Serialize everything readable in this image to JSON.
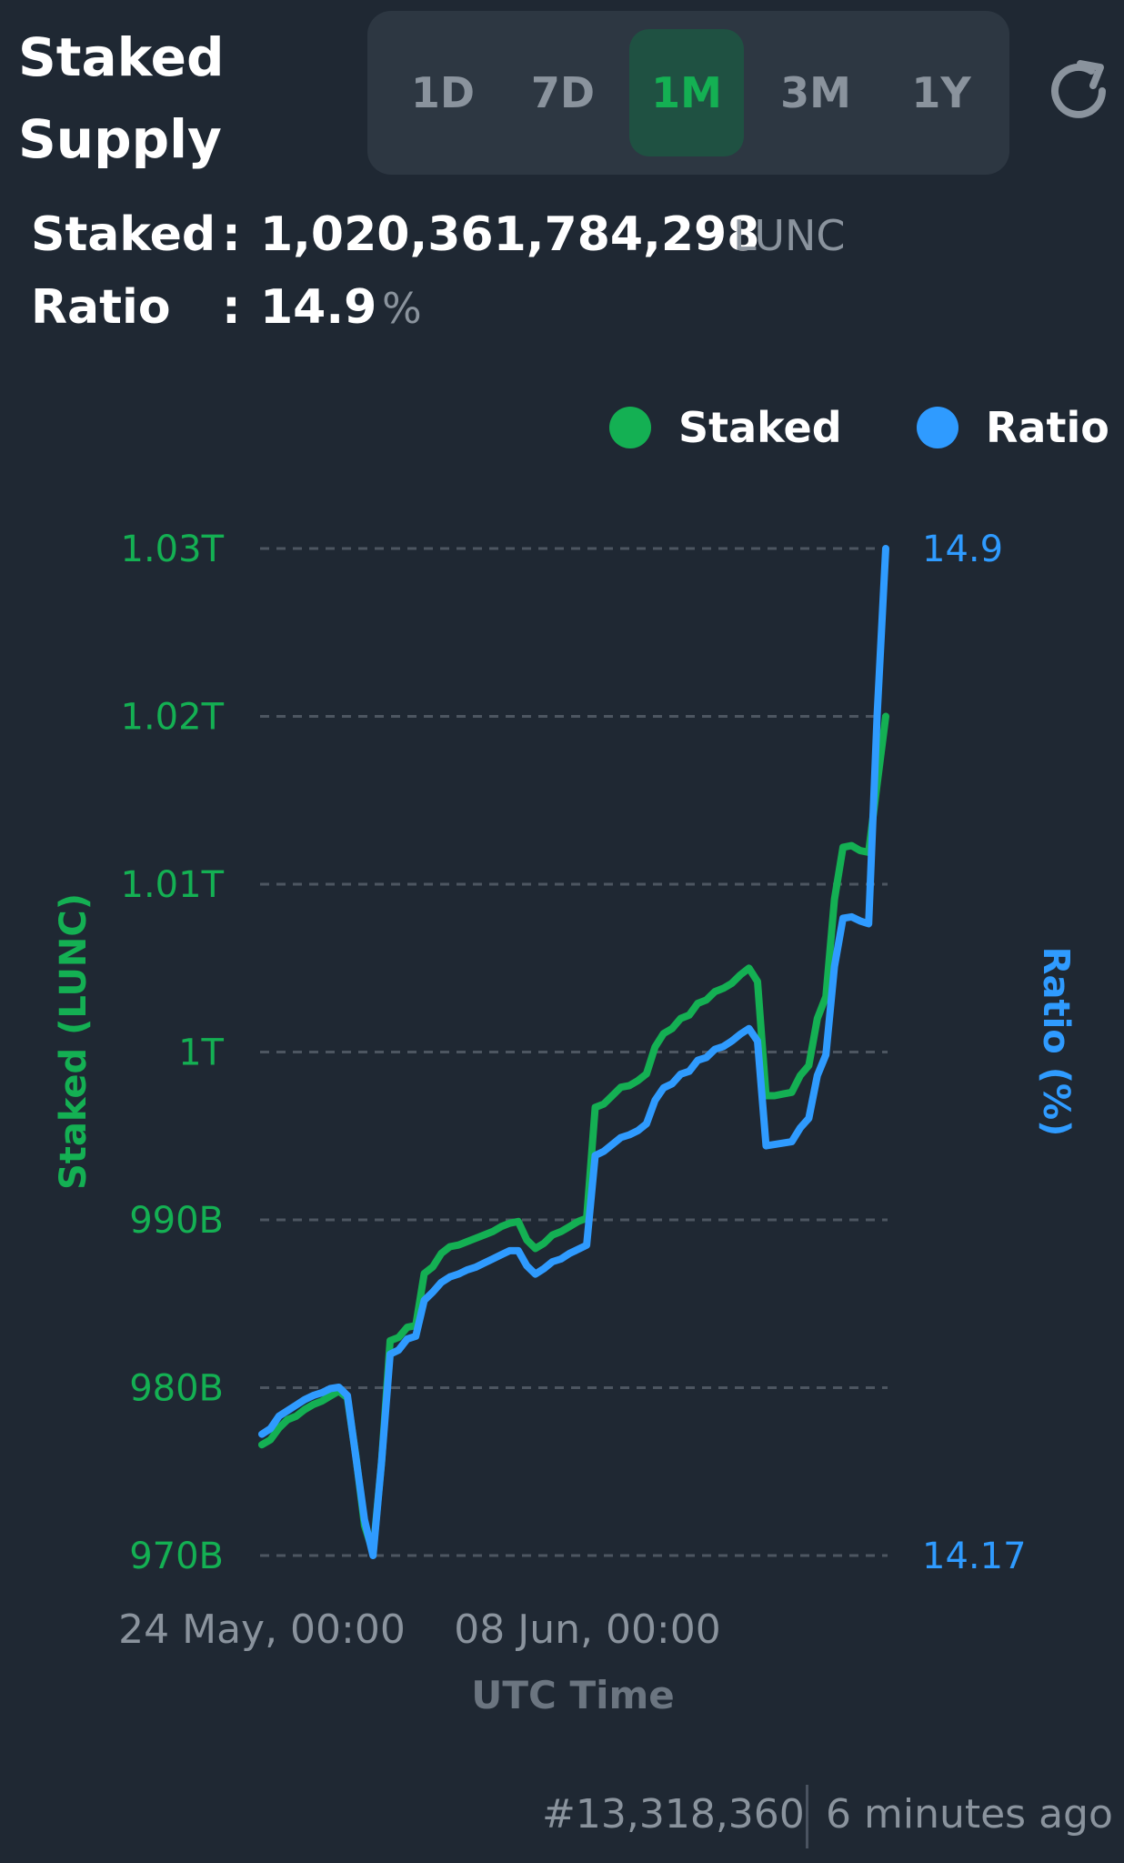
{
  "header": {
    "title_line1": "Staked",
    "title_line2": "Supply"
  },
  "range_tabs": [
    {
      "label": "1D",
      "active": false
    },
    {
      "label": "7D",
      "active": false
    },
    {
      "label": "1M",
      "active": true
    },
    {
      "label": "3M",
      "active": false
    },
    {
      "label": "1Y",
      "active": false
    }
  ],
  "refresh_icon": "refresh-icon",
  "stats": {
    "staked_label": "Staked",
    "staked_value": "1,020,361,784,298",
    "staked_unit": "LUNC",
    "ratio_label": "Ratio",
    "ratio_value": "14.9",
    "ratio_unit": "%",
    "separator": ":"
  },
  "legend": [
    {
      "name": "Staked",
      "color": "#14b053"
    },
    {
      "name": "Ratio",
      "color": "#2f9bff"
    }
  ],
  "chart_data": {
    "type": "line",
    "xlabel": "UTC Time",
    "x_tick_labels": [
      "24 May, 00:00",
      "08 Jun, 00:00"
    ],
    "y_left": {
      "label": "Staked (LUNC)",
      "tick_labels": [
        "1.03T",
        "1.02T",
        "1.01T",
        "1T",
        "990B",
        "980B",
        "970B"
      ],
      "tick_values": [
        1030,
        1020,
        1010,
        1000,
        990,
        980,
        970
      ],
      "range": [
        970,
        1030
      ],
      "unit": "B"
    },
    "y_right": {
      "label": "Ratio (%)",
      "tick_labels": [
        "14.9",
        "14.17"
      ],
      "range": [
        14.17,
        14.9
      ]
    },
    "grid": true,
    "legend_position": "top-right",
    "x_points": 74,
    "series": [
      {
        "name": "Staked",
        "axis": "left",
        "color": "#14b053",
        "values": [
          976.6,
          976.9,
          977.6,
          978.1,
          978.3,
          978.7,
          979.0,
          979.2,
          979.5,
          979.8,
          979.4,
          975.9,
          971.8,
          970.2,
          975.6,
          982.8,
          983.0,
          983.6,
          983.7,
          986.8,
          987.2,
          988.0,
          988.4,
          988.5,
          988.7,
          988.9,
          989.1,
          989.3,
          989.6,
          989.8,
          989.9,
          988.8,
          988.3,
          988.6,
          989.1,
          989.3,
          989.6,
          989.9,
          990.1,
          996.7,
          996.9,
          997.4,
          997.9,
          998.0,
          998.3,
          998.7,
          1000.3,
          1001.1,
          1001.4,
          1002.0,
          1002.2,
          1002.9,
          1003.1,
          1003.6,
          1003.8,
          1004.1,
          1004.6,
          1005.0,
          1004.2,
          997.4,
          997.4,
          997.5,
          997.6,
          998.6,
          999.2,
          1002.0,
          1003.3,
          1009.1,
          1012.2,
          1012.3,
          1012.0,
          1011.9,
          1016.0,
          1020.0
        ]
      },
      {
        "name": "Ratio",
        "axis": "right",
        "color": "#2f9bff",
        "values": [
          14.258,
          14.262,
          14.271,
          14.275,
          14.279,
          14.283,
          14.286,
          14.288,
          14.291,
          14.292,
          14.286,
          14.241,
          14.196,
          14.17,
          14.238,
          14.316,
          14.319,
          14.327,
          14.329,
          14.355,
          14.361,
          14.368,
          14.372,
          14.374,
          14.377,
          14.379,
          14.382,
          14.385,
          14.388,
          14.391,
          14.391,
          14.38,
          14.374,
          14.378,
          14.383,
          14.385,
          14.389,
          14.392,
          14.395,
          14.46,
          14.463,
          14.468,
          14.473,
          14.475,
          14.478,
          14.483,
          14.5,
          14.509,
          14.512,
          14.519,
          14.521,
          14.529,
          14.531,
          14.537,
          14.539,
          14.543,
          14.548,
          14.552,
          14.543,
          14.467,
          14.468,
          14.469,
          14.47,
          14.48,
          14.487,
          14.518,
          14.533,
          14.597,
          14.632,
          14.633,
          14.63,
          14.628,
          14.78,
          14.9
        ]
      }
    ]
  },
  "footer": {
    "block": "#13,318,360",
    "age": "6 minutes ago"
  }
}
